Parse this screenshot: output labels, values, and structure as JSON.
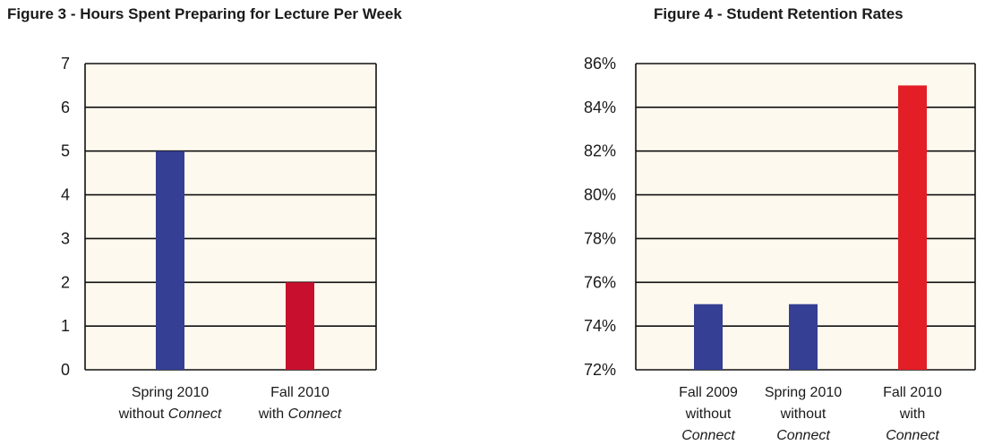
{
  "chart_data": [
    {
      "type": "bar",
      "title": "Figure 3 - Hours Spent Preparing for Lecture Per Week",
      "xlabel": "",
      "ylabel": "",
      "ylim": [
        0,
        7
      ],
      "yticks": [
        "0",
        "1",
        "2",
        "3",
        "4",
        "5",
        "6",
        "7"
      ],
      "grid": true,
      "categories": [
        [
          {
            "t": "Spring 2010",
            "i": false
          },
          {
            "t": "\nwithout ",
            "i": false
          },
          {
            "t": "Connect",
            "i": true
          }
        ],
        [
          {
            "t": "Fall 2010",
            "i": false
          },
          {
            "t": "\nwith ",
            "i": false
          },
          {
            "t": "Connect",
            "i": true
          }
        ]
      ],
      "values": [
        5,
        2
      ],
      "colors": [
        "#353f93",
        "#c8102e"
      ],
      "plot_background": "#fef9ee"
    },
    {
      "type": "bar",
      "title": "Figure 4 - Student Retention Rates",
      "xlabel": "",
      "ylabel": "",
      "ylim": [
        72,
        86
      ],
      "yticks": [
        "72%",
        "74%",
        "76%",
        "78%",
        "80%",
        "82%",
        "84%",
        "86%"
      ],
      "grid": true,
      "categories": [
        [
          {
            "t": "Fall 2009",
            "i": false
          },
          {
            "t": "\nwithout",
            "i": false
          },
          {
            "t": "\nConnect",
            "i": true
          }
        ],
        [
          {
            "t": "Spring 2010",
            "i": false
          },
          {
            "t": "\nwithout",
            "i": false
          },
          {
            "t": "\nConnect",
            "i": true
          }
        ],
        [
          {
            "t": "Fall 2010",
            "i": false
          },
          {
            "t": "\nwith",
            "i": false
          },
          {
            "t": "\nConnect",
            "i": true
          }
        ]
      ],
      "values": [
        75,
        75,
        85
      ],
      "colors": [
        "#353f93",
        "#353f93",
        "#e41e26"
      ],
      "plot_background": "#fef9ee"
    }
  ]
}
